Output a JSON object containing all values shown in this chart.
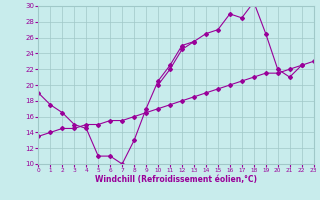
{
  "xlabel": "Windchill (Refroidissement éolien,°C)",
  "bg_color": "#c8ecec",
  "grid_color": "#a0c8c8",
  "line_color": "#990099",
  "xmin": 0,
  "xmax": 23,
  "ymin": 10,
  "ymax": 30,
  "series1_x": [
    0,
    1,
    2,
    3,
    4,
    5,
    6,
    7,
    8,
    9,
    10,
    11,
    12,
    13
  ],
  "series1_y": [
    19.0,
    17.5,
    16.5,
    15.0,
    14.5,
    11.0,
    11.0,
    10.0,
    13.0,
    17.0,
    20.5,
    22.5,
    25.0,
    25.5
  ],
  "series2_x": [
    10,
    11,
    12,
    13,
    14,
    15,
    16,
    17,
    18,
    19,
    20,
    21,
    22
  ],
  "series2_y": [
    20.0,
    22.0,
    24.5,
    25.5,
    26.5,
    27.0,
    29.0,
    28.5,
    30.5,
    26.5,
    22.0,
    21.0,
    22.5
  ],
  "series3_x": [
    0,
    1,
    2,
    3,
    4,
    5,
    6,
    7,
    8,
    9,
    10,
    11,
    12,
    13,
    14,
    15,
    16,
    17,
    18,
    19,
    20,
    21,
    22,
    23
  ],
  "series3_y": [
    13.5,
    14.0,
    14.5,
    14.5,
    15.0,
    15.0,
    15.5,
    15.5,
    16.0,
    16.5,
    17.0,
    17.5,
    18.0,
    18.5,
    19.0,
    19.5,
    20.0,
    20.5,
    21.0,
    21.5,
    21.5,
    22.0,
    22.5,
    23.0
  ]
}
